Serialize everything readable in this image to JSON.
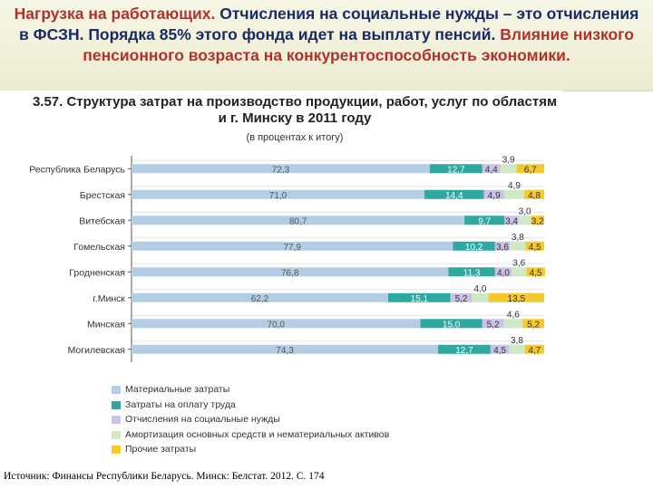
{
  "slide": {
    "title_highlight": "Нагрузка на работающих.",
    "title_rest": " Отчисления на социальные нужды – это отчисления в ФСЗН. Порядка 85% этого фонда идет на выплату пенсий.",
    "title_tail": " Влияние низкого пенсионного возраста на конкурентоспособность экономики."
  },
  "source": "Источник: Финансы Республики Беларусь. Минск: Белстат. 2012. С. 174",
  "chart_data": {
    "type": "bar",
    "stacked": true,
    "orientation": "horizontal",
    "title": "3.57. Структура затрат на производство продукции, работ, услуг по областям и г. Минску в 2011 году",
    "subtitle": "(в процентах к итогу)",
    "categories": [
      "Республика Беларусь",
      "Брестская",
      "Витебская",
      "Гомельская",
      "Гродненская",
      "г.Минск",
      "Минская",
      "Могилевская"
    ],
    "series": [
      {
        "name": "Материальные затраты",
        "color": "#b3cde6",
        "values": [
          72.3,
          71.0,
          80.7,
          77.9,
          76.8,
          62.2,
          70.0,
          74.3
        ],
        "labels": [
          "72,3",
          "71,0",
          "80,7",
          "77,9",
          "76,8",
          "62,2",
          "70,0",
          "74,3"
        ]
      },
      {
        "name": "Затраты на оплату труда",
        "color": "#2ea8a0",
        "values": [
          12.7,
          14.4,
          9.7,
          10.2,
          11.3,
          15.1,
          15.0,
          12.7
        ],
        "labels": [
          "12,7",
          "14,4",
          "9,7",
          "10,2",
          "11,3",
          "15,1",
          "15,0",
          "12,7"
        ]
      },
      {
        "name": "Отчисления на социальные нужды",
        "color": "#c9c2e6",
        "values": [
          4.4,
          4.9,
          3.4,
          3.6,
          4.0,
          5.2,
          5.2,
          4.5
        ],
        "labels": [
          "4,4",
          "4,9",
          "3,4",
          "3,6",
          "4,0",
          "5,2",
          "5,2",
          "4,5"
        ]
      },
      {
        "name": "Амортизация основных средств и нематериальных активов",
        "color": "#cfe8c6",
        "values": [
          3.9,
          4.9,
          3.0,
          3.8,
          3.6,
          4.0,
          4.6,
          3.8
        ],
        "labels": [
          "3,9",
          "4,9",
          "3,0",
          "3,8",
          "3,6",
          "4,0",
          "4,6",
          "3,8"
        ]
      },
      {
        "name": "Прочие затраты",
        "color": "#f5c92c",
        "values": [
          6.7,
          4.8,
          3.2,
          4.5,
          4.5,
          13.5,
          5.2,
          4.7
        ],
        "labels": [
          "6,7",
          "4,8",
          "3,2",
          "4,5",
          "4,5",
          "13,5",
          "5,2",
          "4,7"
        ]
      }
    ],
    "xlim": [
      0,
      100
    ],
    "grid": true,
    "legend_position": "bottom"
  }
}
